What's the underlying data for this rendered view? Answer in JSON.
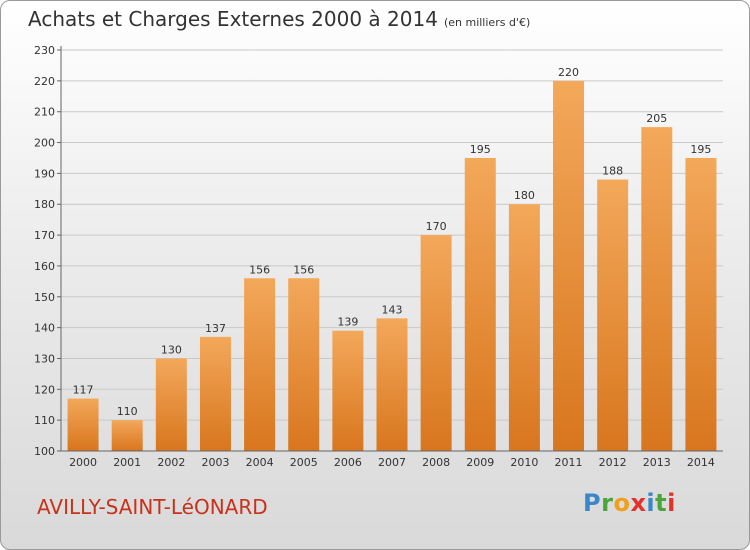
{
  "title": "Achats et Charges Externes 2000 à 2014",
  "unit_note": "(en milliers d'€)",
  "city": "AVILLY-SAINT-LéONARD",
  "logo": {
    "letters": [
      "P",
      "r",
      "o",
      "x",
      "i",
      "t",
      "i"
    ],
    "colors": [
      "#3a86c8",
      "#4aa63b",
      "#f0a01c",
      "#e2322b",
      "#3a86c8",
      "#4aa63b",
      "#e2322b"
    ]
  },
  "colors": {
    "bar_top": "#f3a85a",
    "bar_bottom": "#d8761e",
    "accent": "#c8321a"
  },
  "chart_data": {
    "type": "bar",
    "categories": [
      "2000",
      "2001",
      "2002",
      "2003",
      "2004",
      "2005",
      "2006",
      "2007",
      "2008",
      "2009",
      "2010",
      "2011",
      "2012",
      "2013",
      "2014"
    ],
    "values": [
      117,
      110,
      130,
      137,
      156,
      156,
      139,
      143,
      170,
      195,
      180,
      220,
      188,
      205,
      195
    ],
    "yticks": [
      100,
      110,
      120,
      130,
      140,
      150,
      160,
      170,
      180,
      190,
      200,
      210,
      220,
      230
    ],
    "ylim": [
      100,
      230
    ],
    "grid": true
  }
}
